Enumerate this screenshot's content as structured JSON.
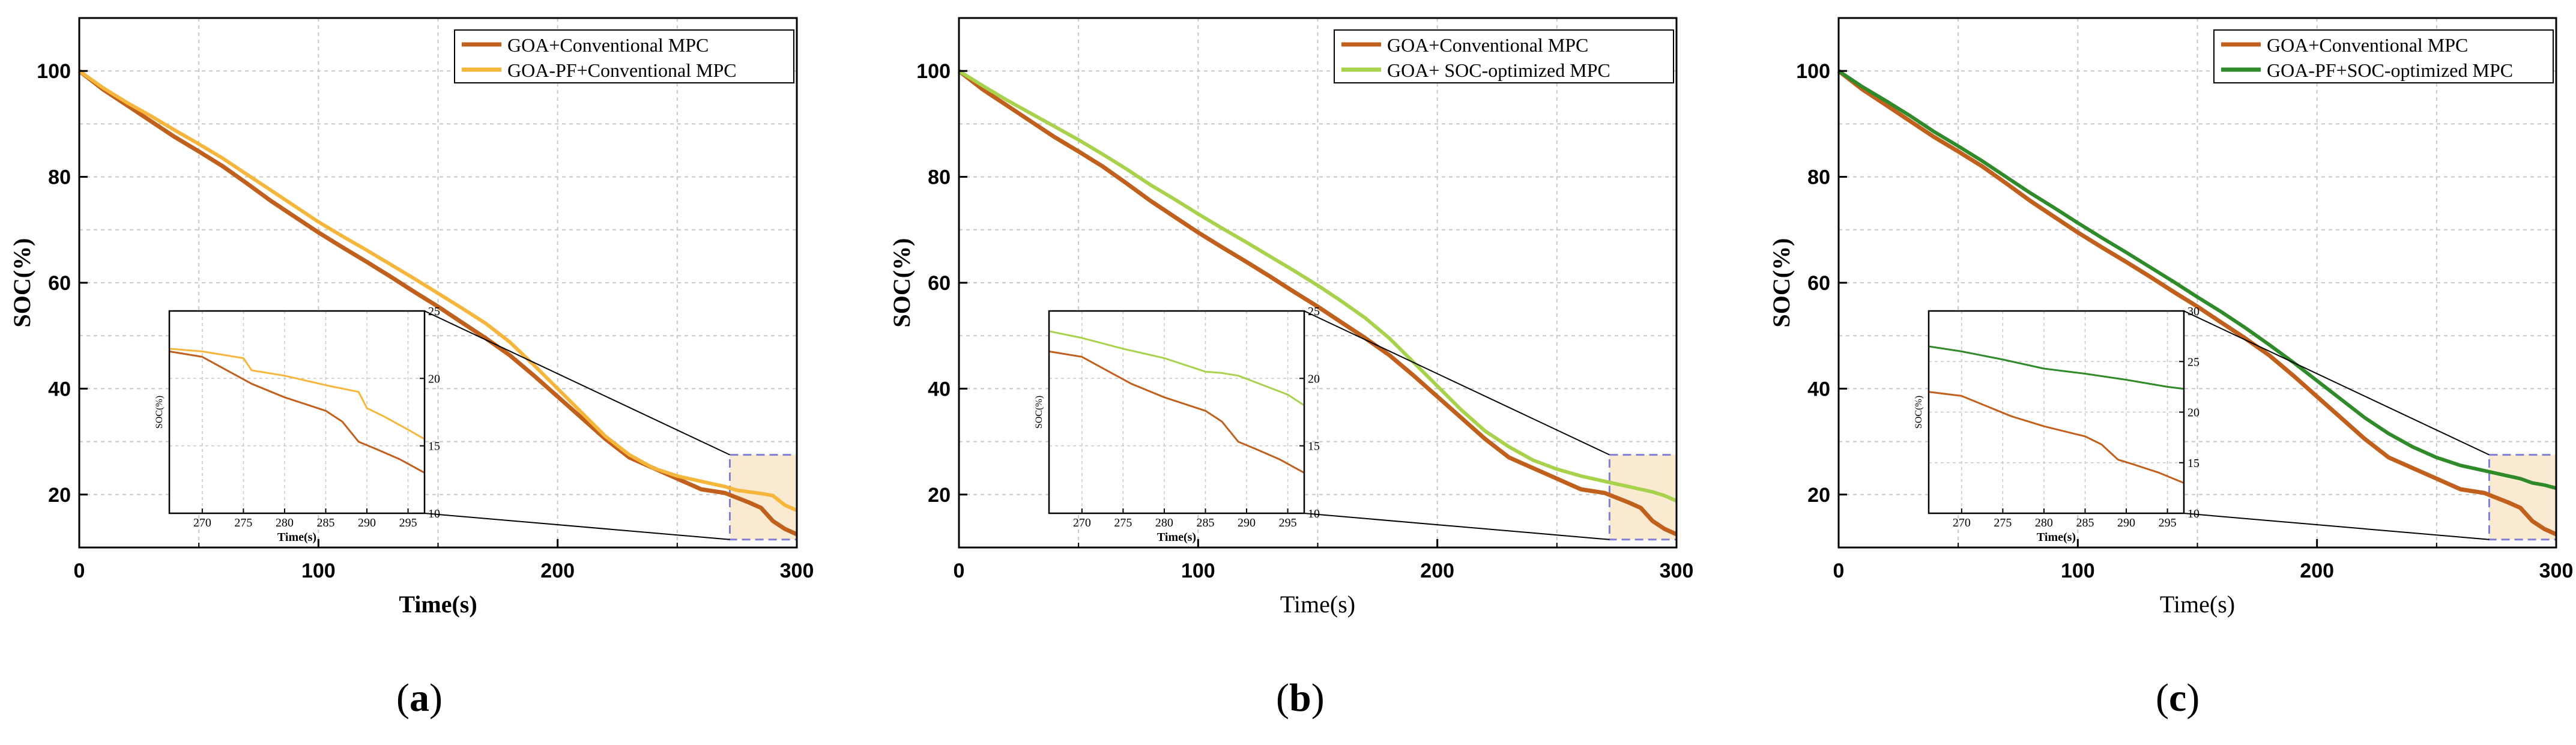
{
  "colors": {
    "conventional": "#c0601c",
    "pf": "#f6b63c",
    "soc_opt": "#a8d24c",
    "pf_soc": "#2f8a2a",
    "grid": "#c8c8c8",
    "zoom_fill": "#fbead2",
    "zoom_border": "#8080d8"
  },
  "subfigure_labels": [
    "a",
    "b",
    "c"
  ],
  "chart_data": [
    {
      "type": "line",
      "title": "",
      "xlabel": "Time(s)",
      "xlabel_bold": true,
      "ylabel": "SOC(%)",
      "xlim": [
        0,
        300
      ],
      "ylim": [
        10,
        110
      ],
      "xticks": [
        0,
        100,
        200,
        300
      ],
      "yticks": [
        20,
        40,
        60,
        80,
        100
      ],
      "grid": true,
      "legend_position": "top-right",
      "series": [
        {
          "name": "GOA+Conventional MPC",
          "color_key": "conventional",
          "x": [
            0,
            10,
            20,
            30,
            40,
            50,
            60,
            70,
            80,
            90,
            100,
            110,
            120,
            130,
            140,
            150,
            160,
            170,
            180,
            190,
            200,
            210,
            220,
            230,
            240,
            250,
            260,
            270,
            280,
            285,
            290,
            295,
            300
          ],
          "y": [
            100,
            96.5,
            93.5,
            90.5,
            87.5,
            84.8,
            82,
            78.8,
            75.5,
            72.5,
            69.5,
            66.7,
            64,
            61.2,
            58.3,
            55.5,
            52.5,
            49.5,
            46.3,
            42.5,
            38.5,
            34.5,
            30.5,
            27,
            25,
            23,
            21,
            20.3,
            18.5,
            17.5,
            15,
            13.5,
            12.5
          ]
        },
        {
          "name": "GOA-PF+Conventional MPC",
          "color_key": "pf",
          "x": [
            0,
            10,
            20,
            30,
            40,
            50,
            60,
            70,
            80,
            90,
            100,
            110,
            120,
            130,
            140,
            150,
            160,
            170,
            180,
            190,
            200,
            210,
            220,
            230,
            240,
            250,
            260,
            270,
            275,
            280,
            285,
            290,
            295,
            300
          ],
          "y": [
            100,
            96.8,
            94,
            91.5,
            88.8,
            86.2,
            83.5,
            80.5,
            77.5,
            74.5,
            71.5,
            68.8,
            66.2,
            63.5,
            60.8,
            58,
            55.2,
            52.3,
            48.8,
            44.5,
            40,
            35.5,
            31,
            27.5,
            25,
            23.5,
            22.5,
            21.5,
            20.8,
            20.5,
            20.2,
            19.8,
            18,
            17
          ]
        }
      ],
      "inset": {
        "xlabel": "Time(s)",
        "ylabel": "SOC(%)",
        "xlim": [
          266,
          297
        ],
        "ylim": [
          10,
          25
        ],
        "xticks": [
          270,
          275,
          280,
          285,
          290,
          295
        ],
        "yticks": [
          10,
          15,
          20,
          25
        ],
        "series": [
          {
            "color_key": "conventional",
            "x": [
              266,
              270,
              273,
              276,
              280,
              285,
              287,
              289,
              291,
              294,
              297
            ],
            "y": [
              22,
              21.6,
              20.6,
              19.6,
              18.6,
              17.6,
              16.8,
              15.3,
              14.8,
              14,
              13
            ]
          },
          {
            "color_key": "pf",
            "x": [
              266,
              270,
              273,
              275,
              276,
              280,
              285,
              289,
              290,
              292,
              295,
              297
            ],
            "y": [
              22.2,
              22,
              21.7,
              21.5,
              20.6,
              20.2,
              19.5,
              19,
              17.8,
              17.2,
              16.2,
              15.5
            ]
          }
        ]
      }
    },
    {
      "type": "line",
      "title": "",
      "xlabel": "Time(s)",
      "xlabel_bold": false,
      "ylabel": "SOC(%)",
      "xlim": [
        0,
        300
      ],
      "ylim": [
        10,
        110
      ],
      "xticks": [
        0,
        100,
        200,
        300
      ],
      "yticks": [
        20,
        40,
        60,
        80,
        100
      ],
      "grid": true,
      "legend_position": "top-right",
      "series": [
        {
          "name": "GOA+Conventional MPC",
          "color_key": "conventional",
          "x": [
            0,
            10,
            20,
            30,
            40,
            50,
            60,
            70,
            80,
            90,
            100,
            110,
            120,
            130,
            140,
            150,
            160,
            170,
            180,
            190,
            200,
            210,
            220,
            230,
            240,
            250,
            260,
            270,
            280,
            285,
            290,
            295,
            300
          ],
          "y": [
            100,
            96.5,
            93.5,
            90.5,
            87.5,
            84.8,
            82,
            78.8,
            75.5,
            72.5,
            69.5,
            66.7,
            64,
            61.2,
            58.3,
            55.5,
            52.5,
            49.5,
            46.3,
            42.5,
            38.5,
            34.5,
            30.5,
            27,
            25,
            23,
            21,
            20.3,
            18.5,
            17.5,
            15,
            13.5,
            12.5
          ]
        },
        {
          "name": "GOA+ SOC-optimized MPC",
          "color_key": "soc_opt",
          "x": [
            0,
            10,
            20,
            30,
            40,
            50,
            60,
            70,
            80,
            90,
            100,
            110,
            120,
            130,
            140,
            150,
            160,
            170,
            180,
            190,
            200,
            210,
            220,
            230,
            240,
            250,
            260,
            270,
            280,
            285,
            290,
            295,
            300
          ],
          "y": [
            100,
            97.2,
            94.5,
            92,
            89.5,
            87,
            84.3,
            81.5,
            78.5,
            75.8,
            73,
            70.3,
            67.7,
            65,
            62.3,
            59.5,
            56.5,
            53.3,
            49.5,
            45,
            40.5,
            36,
            32,
            29,
            26.5,
            24.8,
            23.5,
            22.5,
            21.5,
            21,
            20.5,
            19.8,
            18.8
          ]
        }
      ],
      "inset": {
        "xlabel": "Time(s)",
        "ylabel": "SOC(%)",
        "xlim": [
          266,
          297
        ],
        "ylim": [
          10,
          25
        ],
        "xticks": [
          270,
          275,
          280,
          285,
          290,
          295
        ],
        "yticks": [
          10,
          15,
          20,
          25
        ],
        "series": [
          {
            "color_key": "conventional",
            "x": [
              266,
              270,
              273,
              276,
              280,
              285,
              287,
              289,
              291,
              294,
              297
            ],
            "y": [
              22,
              21.6,
              20.6,
              19.6,
              18.6,
              17.6,
              16.8,
              15.3,
              14.8,
              14,
              13
            ]
          },
          {
            "color_key": "soc_opt",
            "x": [
              266,
              270,
              275,
              280,
              285,
              287,
              289,
              292,
              295,
              297
            ],
            "y": [
              23.5,
              23,
              22.2,
              21.5,
              20.5,
              20.4,
              20.2,
              19.5,
              18.8,
              18
            ]
          }
        ]
      }
    },
    {
      "type": "line",
      "title": "",
      "xlabel": "Time(s)",
      "xlabel_bold": false,
      "ylabel": "SOC(%)",
      "xlim": [
        0,
        300
      ],
      "ylim": [
        10,
        110
      ],
      "xticks": [
        0,
        100,
        200,
        300
      ],
      "yticks": [
        20,
        40,
        60,
        80,
        100
      ],
      "grid": true,
      "legend_position": "top-right",
      "series": [
        {
          "name": "GOA+Conventional MPC",
          "color_key": "conventional",
          "x": [
            0,
            10,
            20,
            30,
            40,
            50,
            60,
            70,
            80,
            90,
            100,
            110,
            120,
            130,
            140,
            150,
            160,
            170,
            180,
            190,
            200,
            210,
            220,
            230,
            240,
            250,
            260,
            270,
            280,
            285,
            290,
            295,
            300
          ],
          "y": [
            100,
            96.5,
            93.5,
            90.5,
            87.5,
            84.8,
            82,
            78.8,
            75.5,
            72.5,
            69.5,
            66.7,
            64,
            61.2,
            58.3,
            55.5,
            52.5,
            49.5,
            46.3,
            42.5,
            38.5,
            34.5,
            30.5,
            27,
            25,
            23,
            21,
            20.3,
            18.5,
            17.5,
            15,
            13.5,
            12.5
          ]
        },
        {
          "name": "GOA-PF+SOC-optimized MPC",
          "color_key": "pf_soc",
          "x": [
            0,
            10,
            20,
            30,
            40,
            50,
            60,
            70,
            80,
            90,
            100,
            110,
            120,
            130,
            140,
            150,
            160,
            170,
            180,
            190,
            200,
            210,
            220,
            230,
            240,
            250,
            260,
            270,
            280,
            285,
            290,
            295,
            300
          ],
          "y": [
            100,
            97,
            94.3,
            91.5,
            88.5,
            85.8,
            83,
            80,
            77,
            74.2,
            71.3,
            68.5,
            65.8,
            63,
            60.2,
            57.3,
            54.5,
            51.5,
            48.3,
            45,
            41.5,
            38,
            34.5,
            31.5,
            29,
            27,
            25.5,
            24.5,
            23.5,
            23,
            22.2,
            21.8,
            21.2
          ]
        }
      ],
      "inset": {
        "xlabel": "Time(s)",
        "ylabel": "SOC(%)",
        "xlim": [
          266,
          297
        ],
        "ylim": [
          10,
          30
        ],
        "xticks": [
          270,
          275,
          280,
          285,
          290,
          295
        ],
        "yticks": [
          10,
          15,
          20,
          25,
          30
        ],
        "series": [
          {
            "color_key": "conventional",
            "x": [
              266,
              270,
              273,
              276,
              280,
              285,
              287,
              289,
              291,
              294,
              297
            ],
            "y": [
              22,
              21.6,
              20.6,
              19.6,
              18.6,
              17.6,
              16.8,
              15.3,
              14.8,
              14,
              13
            ]
          },
          {
            "color_key": "pf_soc",
            "x": [
              266,
              270,
              275,
              280,
              285,
              290,
              295,
              297
            ],
            "y": [
              26.5,
              26,
              25.2,
              24.3,
              23.8,
              23.2,
              22.5,
              22.3
            ]
          }
        ]
      }
    }
  ]
}
